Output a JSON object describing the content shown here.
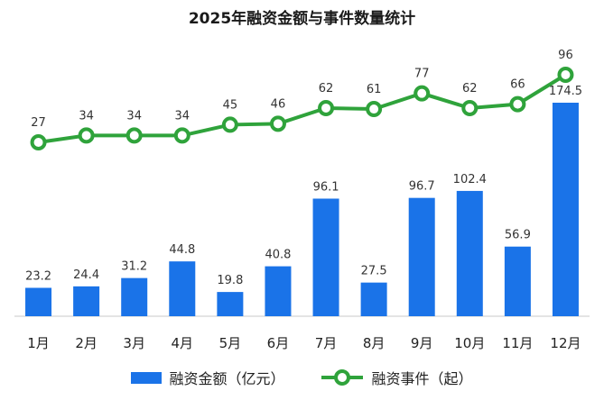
{
  "title": "2025年融资金额与事件数量统计",
  "colors": {
    "bar": "#1a73e8",
    "line": "#2fa33b",
    "axis": "#c9c9c9",
    "text": "#333333"
  },
  "chart_data": {
    "type": "bar",
    "title": "2025年融资金额与事件数量统计",
    "categories": [
      "1月",
      "2月",
      "3月",
      "4月",
      "5月",
      "6月",
      "7月",
      "8月",
      "9月",
      "10月",
      "11月",
      "12月"
    ],
    "series": [
      {
        "name": "融资金额（亿元）",
        "type": "bar",
        "values": [
          23.2,
          24.4,
          31.2,
          44.8,
          19.8,
          40.8,
          96.1,
          27.5,
          96.7,
          102.4,
          56.9,
          174.5
        ],
        "labels": [
          "23.2",
          "24.4",
          "31.2",
          "44.8",
          "19.8",
          "40.8",
          "96.1",
          "27.5",
          "96.7",
          "102.4",
          "56.9",
          "174.5"
        ]
      },
      {
        "name": "融资事件（起）",
        "type": "line",
        "values": [
          27,
          34,
          34,
          34,
          45,
          46,
          62,
          61,
          77,
          62,
          66,
          96
        ],
        "labels": [
          "27",
          "34",
          "34",
          "34",
          "45",
          "46",
          "62",
          "61",
          "77",
          "62",
          "66",
          "96"
        ]
      }
    ],
    "legend": "bottom",
    "grid": false
  }
}
